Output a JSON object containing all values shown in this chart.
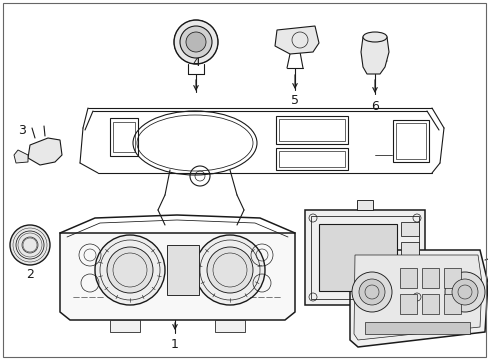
{
  "bg_color": "#ffffff",
  "line_color": "#1a1a1a",
  "lw": 0.8,
  "fig_width": 4.89,
  "fig_height": 3.6,
  "dpi": 100
}
